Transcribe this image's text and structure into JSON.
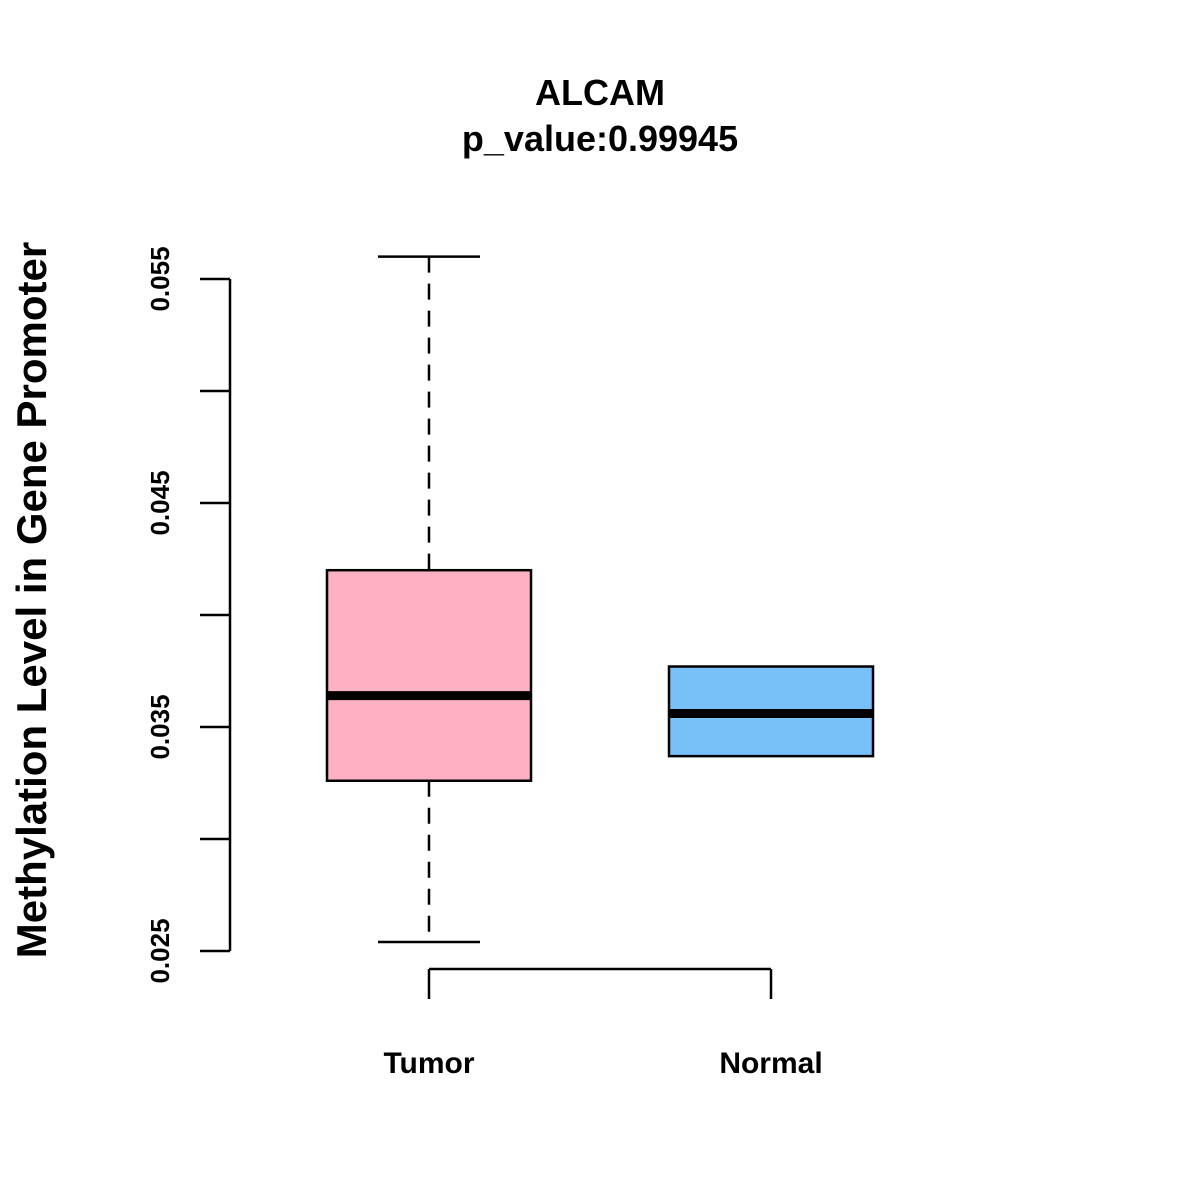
{
  "chart_data": {
    "type": "boxplot",
    "title": "ALCAM",
    "subtitle": "p_value:0.99945",
    "xlabel": "",
    "ylabel": "Methylation Level in Gene Promoter",
    "ylim": [
      0.025,
      0.056
    ],
    "yticks": [
      0.025,
      0.03,
      0.035,
      0.04,
      0.045,
      0.05,
      0.055
    ],
    "ytick_labels": [
      "0.025",
      "",
      "0.035",
      "",
      "0.045",
      "",
      "0.055"
    ],
    "categories": [
      "Tumor",
      "Normal"
    ],
    "boxes": [
      {
        "name": "Tumor",
        "whisker_low": 0.0254,
        "q1": 0.0326,
        "median": 0.0364,
        "q3": 0.042,
        "whisker_high": 0.056,
        "color": "#FDB1C3"
      },
      {
        "name": "Normal",
        "whisker_low": 0.0337,
        "q1": 0.0337,
        "median": 0.0356,
        "q3": 0.0377,
        "whisker_high": 0.0377,
        "color": "#78C0F8"
      }
    ],
    "grid": false,
    "legend": "none"
  }
}
